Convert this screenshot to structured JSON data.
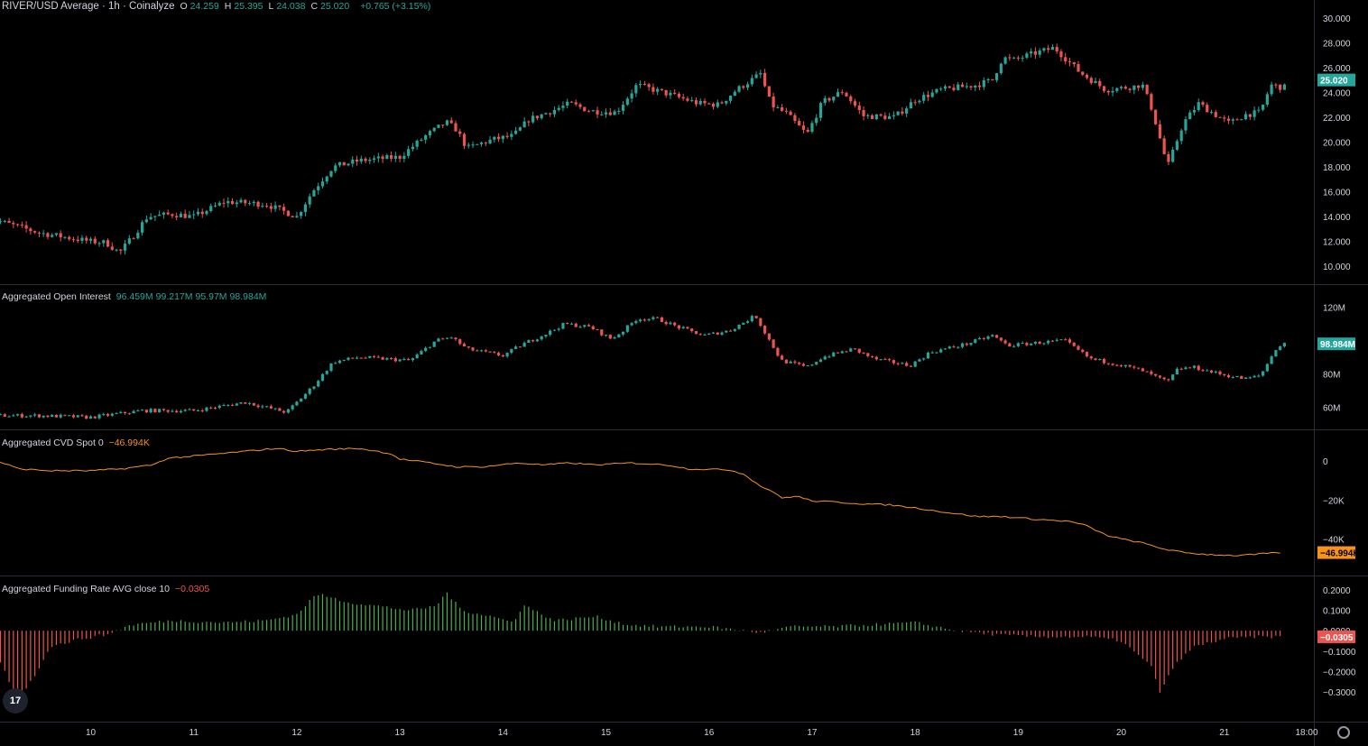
{
  "header": {
    "symbol": "RIVER/USD Average · 1h · Coinalyze",
    "ohlc": [
      {
        "k": "O",
        "v": "24.259"
      },
      {
        "k": "H",
        "v": "25.395"
      },
      {
        "k": "L",
        "v": "24.038"
      },
      {
        "k": "C",
        "v": "25.020"
      }
    ],
    "change": "+0.765 (+3.15%)"
  },
  "colors": {
    "up": "#26a69a",
    "down": "#ef5350",
    "cvd": "#f7931a",
    "fund_up": "#4caf50",
    "fund_down": "#ef5350",
    "grid": "#2a2e39",
    "text": "#d1d4dc"
  },
  "icons": {
    "logo": "tradingview-logo-icon",
    "settings": "gear-icon"
  },
  "chart_data": [
    {
      "type": "candlestick",
      "title": "RIVER/USD Average · 1h · Coinalyze",
      "ylim": [
        9,
        31
      ],
      "yticks": [
        "30.000",
        "28.000",
        "26.000",
        "24.000",
        "22.000",
        "20.000",
        "18.000",
        "16.000",
        "14.000",
        "12.000",
        "10.000"
      ],
      "last_value_label": "25.020",
      "path": [
        [
          9.0,
          13.9
        ],
        [
          9.5,
          12.7
        ],
        [
          10.0,
          12.0
        ],
        [
          10.15,
          11.9
        ],
        [
          10.28,
          11.1
        ],
        [
          10.4,
          12.3
        ],
        [
          10.55,
          14.0
        ],
        [
          10.8,
          14.2
        ],
        [
          11.0,
          14.0
        ],
        [
          11.3,
          15.2
        ],
        [
          11.7,
          15.0
        ],
        [
          12.0,
          14.0
        ],
        [
          12.15,
          16.0
        ],
        [
          12.35,
          18.0
        ],
        [
          12.6,
          18.5
        ],
        [
          13.0,
          18.8
        ],
        [
          13.25,
          20.5
        ],
        [
          13.45,
          21.6
        ],
        [
          13.55,
          21.0
        ],
        [
          13.65,
          19.5
        ],
        [
          13.9,
          20.2
        ],
        [
          14.1,
          20.5
        ],
        [
          14.25,
          21.8
        ],
        [
          14.5,
          22.6
        ],
        [
          14.65,
          23.1
        ],
        [
          14.85,
          22.5
        ],
        [
          15.1,
          22.4
        ],
        [
          15.3,
          24.6
        ],
        [
          15.55,
          24.0
        ],
        [
          15.9,
          23.1
        ],
        [
          16.1,
          23.0
        ],
        [
          16.25,
          24.1
        ],
        [
          16.5,
          25.5
        ],
        [
          16.6,
          23.0
        ],
        [
          16.75,
          22.3
        ],
        [
          16.95,
          20.6
        ],
        [
          17.1,
          23.2
        ],
        [
          17.3,
          24.1
        ],
        [
          17.5,
          22.1
        ],
        [
          17.8,
          22.0
        ],
        [
          18.0,
          23.4
        ],
        [
          18.25,
          24.2
        ],
        [
          18.6,
          24.6
        ],
        [
          18.75,
          25.0
        ],
        [
          18.85,
          26.8
        ],
        [
          18.95,
          26.6
        ],
        [
          19.1,
          27.0
        ],
        [
          19.35,
          27.6
        ],
        [
          19.6,
          25.6
        ],
        [
          19.85,
          24.2
        ],
        [
          20.15,
          24.5
        ],
        [
          20.2,
          24.7
        ],
        [
          20.3,
          22.6
        ],
        [
          20.45,
          18.0
        ],
        [
          20.6,
          21.5
        ],
        [
          20.75,
          23.1
        ],
        [
          20.95,
          22.0
        ],
        [
          21.05,
          21.5
        ],
        [
          21.2,
          22.2
        ],
        [
          21.35,
          22.4
        ],
        [
          21.45,
          24.6
        ],
        [
          21.57,
          24.4
        ]
      ],
      "x_range": [
        9.12,
        21.86
      ],
      "x_ticks": [
        "10",
        "11",
        "12",
        "13",
        "14",
        "15",
        "16",
        "17",
        "18",
        "19",
        "20",
        "21",
        "18:00"
      ]
    },
    {
      "type": "candlestick",
      "title": "Aggregated Open Interest",
      "values_label": [
        "96.459M",
        "99.217M",
        "95.97M",
        "98.984M"
      ],
      "ylim": [
        50,
        130
      ],
      "yticks": [
        "120M",
        "80M",
        "60M"
      ],
      "last_value_label": "98.984M",
      "path": [
        [
          9.0,
          55
        ],
        [
          9.5,
          55
        ],
        [
          10.0,
          54
        ],
        [
          10.5,
          58
        ],
        [
          11.0,
          58
        ],
        [
          11.5,
          63
        ],
        [
          11.9,
          57
        ],
        [
          12.15,
          72
        ],
        [
          12.35,
          87
        ],
        [
          12.6,
          90
        ],
        [
          13.1,
          88
        ],
        [
          13.35,
          100
        ],
        [
          13.5,
          102
        ],
        [
          13.65,
          95
        ],
        [
          13.9,
          92
        ],
        [
          14.0,
          91
        ],
        [
          14.2,
          98
        ],
        [
          14.45,
          105
        ],
        [
          14.6,
          110
        ],
        [
          14.85,
          108
        ],
        [
          15.05,
          101
        ],
        [
          15.15,
          105
        ],
        [
          15.3,
          113
        ],
        [
          15.5,
          113
        ],
        [
          15.7,
          108
        ],
        [
          15.95,
          103
        ],
        [
          16.2,
          106
        ],
        [
          16.45,
          115
        ],
        [
          16.55,
          104
        ],
        [
          16.7,
          88
        ],
        [
          16.95,
          84
        ],
        [
          17.1,
          90
        ],
        [
          17.4,
          95
        ],
        [
          17.6,
          89
        ],
        [
          17.95,
          85
        ],
        [
          18.15,
          93
        ],
        [
          18.5,
          98
        ],
        [
          18.75,
          103
        ],
        [
          18.9,
          97
        ],
        [
          19.25,
          99
        ],
        [
          19.45,
          100
        ],
        [
          19.7,
          89
        ],
        [
          19.95,
          86
        ],
        [
          20.2,
          82
        ],
        [
          20.45,
          75
        ],
        [
          20.55,
          83
        ],
        [
          20.7,
          84
        ],
        [
          20.95,
          80
        ],
        [
          21.2,
          77
        ],
        [
          21.35,
          79
        ],
        [
          21.5,
          95
        ],
        [
          21.57,
          98
        ]
      ],
      "x_range": [
        9.12,
        21.86
      ]
    },
    {
      "type": "line",
      "title": "Aggregated CVD Spot 0",
      "value_label": "−46.994K",
      "ylim": [
        -56,
        13
      ],
      "yticks": [
        "0",
        "−20K",
        "−40K"
      ],
      "last_value_label": "−46.994K",
      "path": [
        [
          9.0,
          0.5
        ],
        [
          9.15,
          -1
        ],
        [
          9.3,
          -4
        ],
        [
          9.6,
          -5
        ],
        [
          10.0,
          -5
        ],
        [
          10.3,
          -4
        ],
        [
          10.6,
          -2
        ],
        [
          10.75,
          1.5
        ],
        [
          11.0,
          2.5
        ],
        [
          11.3,
          4
        ],
        [
          11.6,
          5.5
        ],
        [
          11.8,
          6.5
        ],
        [
          12.0,
          5
        ],
        [
          12.3,
          6
        ],
        [
          12.6,
          6.5
        ],
        [
          12.9,
          4
        ],
        [
          13.0,
          1
        ],
        [
          13.3,
          -1
        ],
        [
          13.55,
          -3
        ],
        [
          13.8,
          -3
        ],
        [
          14.15,
          -1
        ],
        [
          14.4,
          -2
        ],
        [
          14.65,
          -1
        ],
        [
          14.9,
          -2
        ],
        [
          15.25,
          -1
        ],
        [
          15.6,
          -2
        ],
        [
          15.8,
          -4
        ],
        [
          16.2,
          -4.5
        ],
        [
          16.35,
          -7
        ],
        [
          16.5,
          -13
        ],
        [
          16.6,
          -15
        ],
        [
          16.7,
          -19
        ],
        [
          16.85,
          -18
        ],
        [
          17.0,
          -20.5
        ],
        [
          17.2,
          -21
        ],
        [
          17.5,
          -22
        ],
        [
          17.75,
          -22.5
        ],
        [
          18.0,
          -24
        ],
        [
          18.25,
          -26
        ],
        [
          18.6,
          -28.5
        ],
        [
          18.85,
          -28.5
        ],
        [
          19.2,
          -30
        ],
        [
          19.5,
          -31
        ],
        [
          19.65,
          -33
        ],
        [
          19.85,
          -38
        ],
        [
          20.0,
          -40
        ],
        [
          20.2,
          -42
        ],
        [
          20.4,
          -45
        ],
        [
          20.6,
          -47
        ],
        [
          20.85,
          -48
        ],
        [
          21.1,
          -48.5
        ],
        [
          21.3,
          -48
        ],
        [
          21.4,
          -47.5
        ],
        [
          21.57,
          -47
        ]
      ],
      "x_range": [
        9.12,
        21.86
      ]
    },
    {
      "type": "bar",
      "title": "Aggregated Funding Rate AVG close 10",
      "value_label": "−0.0305",
      "ylim": [
        -0.42,
        0.24
      ],
      "yticks": [
        "0.2000",
        "0.1000",
        "0.0000",
        "−0.1000",
        "−0.2000",
        "−0.3000"
      ],
      "last_value_label": "−0.0305",
      "path": [
        [
          9.0,
          -0.05
        ],
        [
          9.15,
          -0.18
        ],
        [
          9.28,
          -0.34
        ],
        [
          9.45,
          -0.23
        ],
        [
          9.6,
          -0.08
        ],
        [
          9.9,
          -0.04
        ],
        [
          10.15,
          -0.02
        ],
        [
          10.4,
          0.03
        ],
        [
          10.8,
          0.05
        ],
        [
          11.3,
          0.04
        ],
        [
          11.7,
          0.05
        ],
        [
          12.0,
          0.08
        ],
        [
          12.15,
          0.16
        ],
        [
          12.2,
          0.18
        ],
        [
          12.5,
          0.14
        ],
        [
          12.8,
          0.12
        ],
        [
          13.1,
          0.1
        ],
        [
          13.35,
          0.12
        ],
        [
          13.45,
          0.19
        ],
        [
          13.6,
          0.1
        ],
        [
          13.9,
          0.07
        ],
        [
          14.1,
          0.04
        ],
        [
          14.2,
          0.13
        ],
        [
          14.3,
          0.1
        ],
        [
          14.5,
          0.05
        ],
        [
          14.9,
          0.07
        ],
        [
          15.2,
          0.03
        ],
        [
          15.5,
          0.02
        ],
        [
          16.0,
          0.02
        ],
        [
          16.5,
          -0.01
        ],
        [
          16.8,
          0.02
        ],
        [
          17.2,
          0.02
        ],
        [
          17.6,
          0.03
        ],
        [
          18.0,
          0.04
        ],
        [
          18.4,
          0.0
        ],
        [
          18.8,
          -0.02
        ],
        [
          19.2,
          -0.03
        ],
        [
          19.7,
          -0.03
        ],
        [
          20.0,
          -0.05
        ],
        [
          20.3,
          -0.18
        ],
        [
          20.38,
          -0.31
        ],
        [
          20.5,
          -0.18
        ],
        [
          20.7,
          -0.08
        ],
        [
          21.0,
          -0.04
        ],
        [
          21.3,
          -0.03
        ],
        [
          21.57,
          -0.03
        ]
      ],
      "x_range": [
        9.12,
        21.86
      ]
    }
  ]
}
